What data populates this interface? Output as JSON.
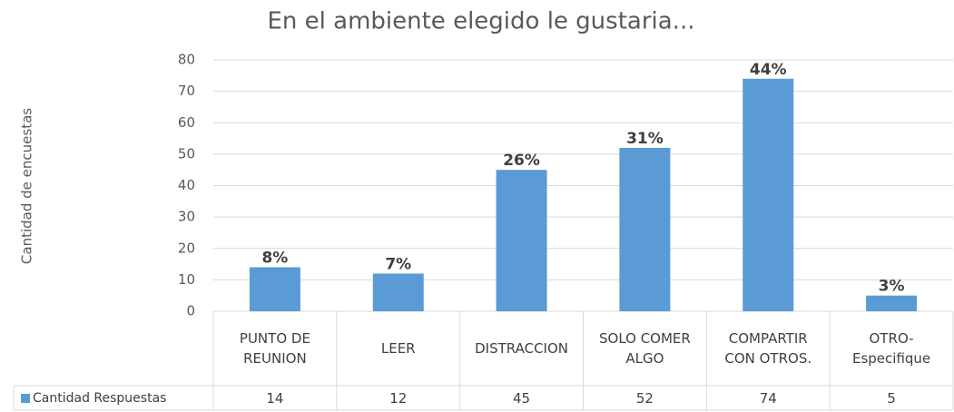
{
  "chart_data": {
    "type": "bar",
    "title": "En el ambiente elegido le gustaria...",
    "y_label": "Cantidad de encuestas",
    "categories": [
      "PUNTO DE REUNION",
      "LEER",
      "DISTRACCION",
      "SOLO COMER ALGO",
      "COMPARTIR CON OTROS.",
      "OTRO-Especifique"
    ],
    "series": [
      {
        "name": "Cantidad Respuestas",
        "color": "#5b9bd5",
        "values": [
          14,
          12,
          45,
          52,
          74,
          5
        ],
        "data_labels": [
          "8%",
          "7%",
          "26%",
          "31%",
          "44%",
          "3%"
        ]
      }
    ],
    "ylim": [
      0,
      80
    ],
    "yticks": [
      0,
      10,
      20,
      30,
      40,
      50,
      60,
      70,
      80
    ],
    "grid": true,
    "data_table": true
  }
}
